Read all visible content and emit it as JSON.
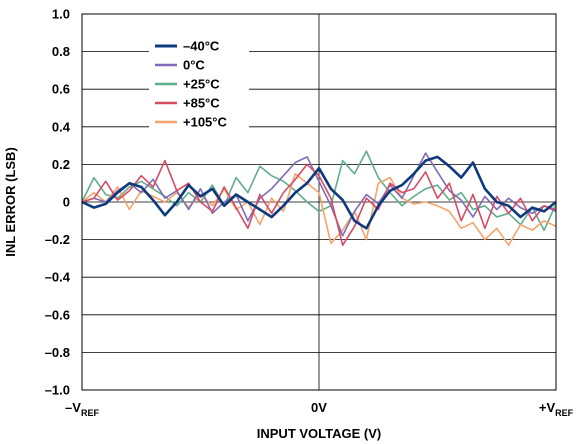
{
  "chart_data": {
    "type": "line",
    "xlabel": "INPUT VOLTAGE (V)",
    "ylabel": "INL ERROR (LSB)",
    "xticks": [
      {
        "text": "–V",
        "sub": "REF"
      },
      {
        "text": "0V",
        "sub": ""
      },
      {
        "text": "+V",
        "sub": "REF"
      }
    ],
    "xlim": [
      -1,
      1
    ],
    "ylim": [
      -1.0,
      1.0
    ],
    "yticks": [
      "1.0",
      "0.8",
      "0.6",
      "0.4",
      "0.2",
      "0",
      "–0.2",
      "–0.4",
      "–0.6",
      "–0.8",
      "–1.0"
    ],
    "ytick_values": [
      1.0,
      0.8,
      0.6,
      0.4,
      0.2,
      0,
      -0.2,
      -0.4,
      -0.6,
      -0.8,
      -1.0
    ],
    "legend_position": "top-left",
    "grid": true,
    "series": [
      {
        "name": "–40°C",
        "color": "#0d3a7d",
        "points": [
          [
            -1.0,
            0.0
          ],
          [
            -0.95,
            -0.03
          ],
          [
            -0.9,
            -0.01
          ],
          [
            -0.85,
            0.05
          ],
          [
            -0.8,
            0.1
          ],
          [
            -0.75,
            0.08
          ],
          [
            -0.7,
            0.01
          ],
          [
            -0.65,
            -0.07
          ],
          [
            -0.6,
            0.0
          ],
          [
            -0.55,
            0.09
          ],
          [
            -0.5,
            0.03
          ],
          [
            -0.45,
            0.07
          ],
          [
            -0.4,
            -0.02
          ],
          [
            -0.35,
            0.04
          ],
          [
            -0.3,
            0.0
          ],
          [
            -0.25,
            -0.04
          ],
          [
            -0.2,
            -0.08
          ],
          [
            -0.15,
            -0.02
          ],
          [
            -0.1,
            0.05
          ],
          [
            -0.05,
            0.1
          ],
          [
            0.0,
            0.18
          ],
          [
            0.05,
            0.07
          ],
          [
            0.1,
            0.01
          ],
          [
            0.15,
            -0.1
          ],
          [
            0.2,
            -0.14
          ],
          [
            0.25,
            -0.02
          ],
          [
            0.3,
            0.06
          ],
          [
            0.35,
            0.09
          ],
          [
            0.4,
            0.15
          ],
          [
            0.45,
            0.22
          ],
          [
            0.5,
            0.24
          ],
          [
            0.55,
            0.19
          ],
          [
            0.6,
            0.13
          ],
          [
            0.65,
            0.21
          ],
          [
            0.7,
            0.07
          ],
          [
            0.75,
            0.0
          ],
          [
            0.8,
            -0.02
          ],
          [
            0.85,
            -0.08
          ],
          [
            0.9,
            -0.03
          ],
          [
            0.95,
            -0.05
          ],
          [
            1.0,
            0.0
          ]
        ]
      },
      {
        "name": "0°C",
        "color": "#7f6bb8",
        "points": [
          [
            -1.0,
            0.0
          ],
          [
            -0.95,
            0.02
          ],
          [
            -0.9,
            0.0
          ],
          [
            -0.85,
            0.06
          ],
          [
            -0.8,
            0.1
          ],
          [
            -0.75,
            0.05
          ],
          [
            -0.7,
            0.12
          ],
          [
            -0.65,
            0.02
          ],
          [
            -0.6,
            0.06
          ],
          [
            -0.55,
            -0.04
          ],
          [
            -0.5,
            0.07
          ],
          [
            -0.45,
            -0.06
          ],
          [
            -0.4,
            0.0
          ],
          [
            -0.35,
            0.04
          ],
          [
            -0.3,
            -0.1
          ],
          [
            -0.25,
            0.02
          ],
          [
            -0.2,
            0.07
          ],
          [
            -0.15,
            0.14
          ],
          [
            -0.1,
            0.21
          ],
          [
            -0.05,
            0.24
          ],
          [
            0.0,
            0.11
          ],
          [
            0.05,
            -0.02
          ],
          [
            0.1,
            -0.18
          ],
          [
            0.15,
            -0.05
          ],
          [
            0.2,
            0.04
          ],
          [
            0.25,
            -0.01
          ],
          [
            0.3,
            0.09
          ],
          [
            0.35,
            0.02
          ],
          [
            0.4,
            0.14
          ],
          [
            0.45,
            0.26
          ],
          [
            0.5,
            0.16
          ],
          [
            0.55,
            0.06
          ],
          [
            0.6,
            0.01
          ],
          [
            0.65,
            -0.08
          ],
          [
            0.7,
            0.03
          ],
          [
            0.75,
            -0.04
          ],
          [
            0.8,
            0.02
          ],
          [
            0.85,
            -0.03
          ],
          [
            0.9,
            -0.06
          ],
          [
            0.95,
            -0.02
          ],
          [
            1.0,
            -0.05
          ]
        ]
      },
      {
        "name": "+25°C",
        "color": "#5fae8c",
        "points": [
          [
            -1.0,
            0.0
          ],
          [
            -0.95,
            0.13
          ],
          [
            -0.9,
            0.04
          ],
          [
            -0.85,
            0.02
          ],
          [
            -0.8,
            0.08
          ],
          [
            -0.75,
            0.11
          ],
          [
            -0.7,
            0.07
          ],
          [
            -0.65,
            0.03
          ],
          [
            -0.6,
            -0.02
          ],
          [
            -0.55,
            0.05
          ],
          [
            -0.5,
            0.0
          ],
          [
            -0.45,
            0.09
          ],
          [
            -0.4,
            -0.02
          ],
          [
            -0.35,
            0.13
          ],
          [
            -0.3,
            0.05
          ],
          [
            -0.25,
            0.19
          ],
          [
            -0.2,
            0.14
          ],
          [
            -0.15,
            0.11
          ],
          [
            -0.1,
            0.06
          ],
          [
            -0.05,
            0.0
          ],
          [
            0.0,
            -0.05
          ],
          [
            0.05,
            -0.02
          ],
          [
            0.1,
            0.22
          ],
          [
            0.15,
            0.15
          ],
          [
            0.2,
            0.27
          ],
          [
            0.25,
            0.13
          ],
          [
            0.3,
            0.05
          ],
          [
            0.35,
            -0.02
          ],
          [
            0.4,
            0.03
          ],
          [
            0.45,
            0.07
          ],
          [
            0.5,
            0.09
          ],
          [
            0.55,
            0.01
          ],
          [
            0.6,
            0.05
          ],
          [
            0.65,
            -0.04
          ],
          [
            0.7,
            -0.02
          ],
          [
            0.75,
            -0.08
          ],
          [
            0.8,
            -0.06
          ],
          [
            0.85,
            -0.12
          ],
          [
            0.9,
            -0.03
          ],
          [
            0.95,
            -0.15
          ],
          [
            1.0,
            -0.01
          ]
        ]
      },
      {
        "name": "+85°C",
        "color": "#d94a63",
        "points": [
          [
            -1.0,
            0.0
          ],
          [
            -0.95,
            0.02
          ],
          [
            -0.9,
            0.11
          ],
          [
            -0.85,
            0.01
          ],
          [
            -0.8,
            0.06
          ],
          [
            -0.75,
            0.14
          ],
          [
            -0.7,
            0.08
          ],
          [
            -0.65,
            0.22
          ],
          [
            -0.6,
            0.06
          ],
          [
            -0.55,
            0.1
          ],
          [
            -0.5,
            0.0
          ],
          [
            -0.45,
            -0.05
          ],
          [
            -0.4,
            0.08
          ],
          [
            -0.35,
            -0.03
          ],
          [
            -0.3,
            -0.14
          ],
          [
            -0.25,
            0.04
          ],
          [
            -0.2,
            -0.06
          ],
          [
            -0.15,
            0.05
          ],
          [
            -0.1,
            0.12
          ],
          [
            -0.05,
            0.2
          ],
          [
            0.0,
            0.14
          ],
          [
            0.05,
            0.02
          ],
          [
            0.1,
            -0.23
          ],
          [
            0.15,
            -0.13
          ],
          [
            0.2,
            0.02
          ],
          [
            0.25,
            -0.04
          ],
          [
            0.3,
            0.1
          ],
          [
            0.35,
            0.05
          ],
          [
            0.4,
            0.07
          ],
          [
            0.45,
            0.16
          ],
          [
            0.5,
            0.02
          ],
          [
            0.55,
            0.1
          ],
          [
            0.6,
            -0.1
          ],
          [
            0.65,
            0.04
          ],
          [
            0.7,
            -0.14
          ],
          [
            0.75,
            0.03
          ],
          [
            0.8,
            -0.06
          ],
          [
            0.85,
            0.02
          ],
          [
            0.9,
            -0.1
          ],
          [
            0.95,
            -0.02
          ],
          [
            1.0,
            -0.04
          ]
        ]
      },
      {
        "name": "+105°C",
        "color": "#f4a46c",
        "points": [
          [
            -1.0,
            0.0
          ],
          [
            -0.95,
            0.05
          ],
          [
            -0.9,
            0.0
          ],
          [
            -0.85,
            0.08
          ],
          [
            -0.8,
            -0.04
          ],
          [
            -0.75,
            0.06
          ],
          [
            -0.7,
            0.03
          ],
          [
            -0.65,
            0.0
          ],
          [
            -0.6,
            0.05
          ],
          [
            -0.55,
            -0.03
          ],
          [
            -0.5,
            0.04
          ],
          [
            -0.45,
            -0.02
          ],
          [
            -0.4,
            0.07
          ],
          [
            -0.35,
            -0.04
          ],
          [
            -0.3,
            0.0
          ],
          [
            -0.25,
            -0.12
          ],
          [
            -0.2,
            0.02
          ],
          [
            -0.15,
            -0.05
          ],
          [
            -0.1,
            0.15
          ],
          [
            -0.05,
            0.1
          ],
          [
            0.0,
            0.05
          ],
          [
            0.05,
            -0.22
          ],
          [
            0.1,
            -0.15
          ],
          [
            0.15,
            -0.05
          ],
          [
            0.2,
            -0.2
          ],
          [
            0.25,
            0.1
          ],
          [
            0.3,
            0.13
          ],
          [
            0.35,
            0.02
          ],
          [
            0.4,
            -0.01
          ],
          [
            0.45,
            0.0
          ],
          [
            0.5,
            -0.02
          ],
          [
            0.55,
            -0.05
          ],
          [
            0.6,
            -0.14
          ],
          [
            0.65,
            -0.11
          ],
          [
            0.7,
            -0.2
          ],
          [
            0.75,
            -0.14
          ],
          [
            0.8,
            -0.23
          ],
          [
            0.85,
            -0.12
          ],
          [
            0.9,
            -0.15
          ],
          [
            0.95,
            -0.1
          ],
          [
            1.0,
            -0.13
          ]
        ]
      }
    ]
  }
}
